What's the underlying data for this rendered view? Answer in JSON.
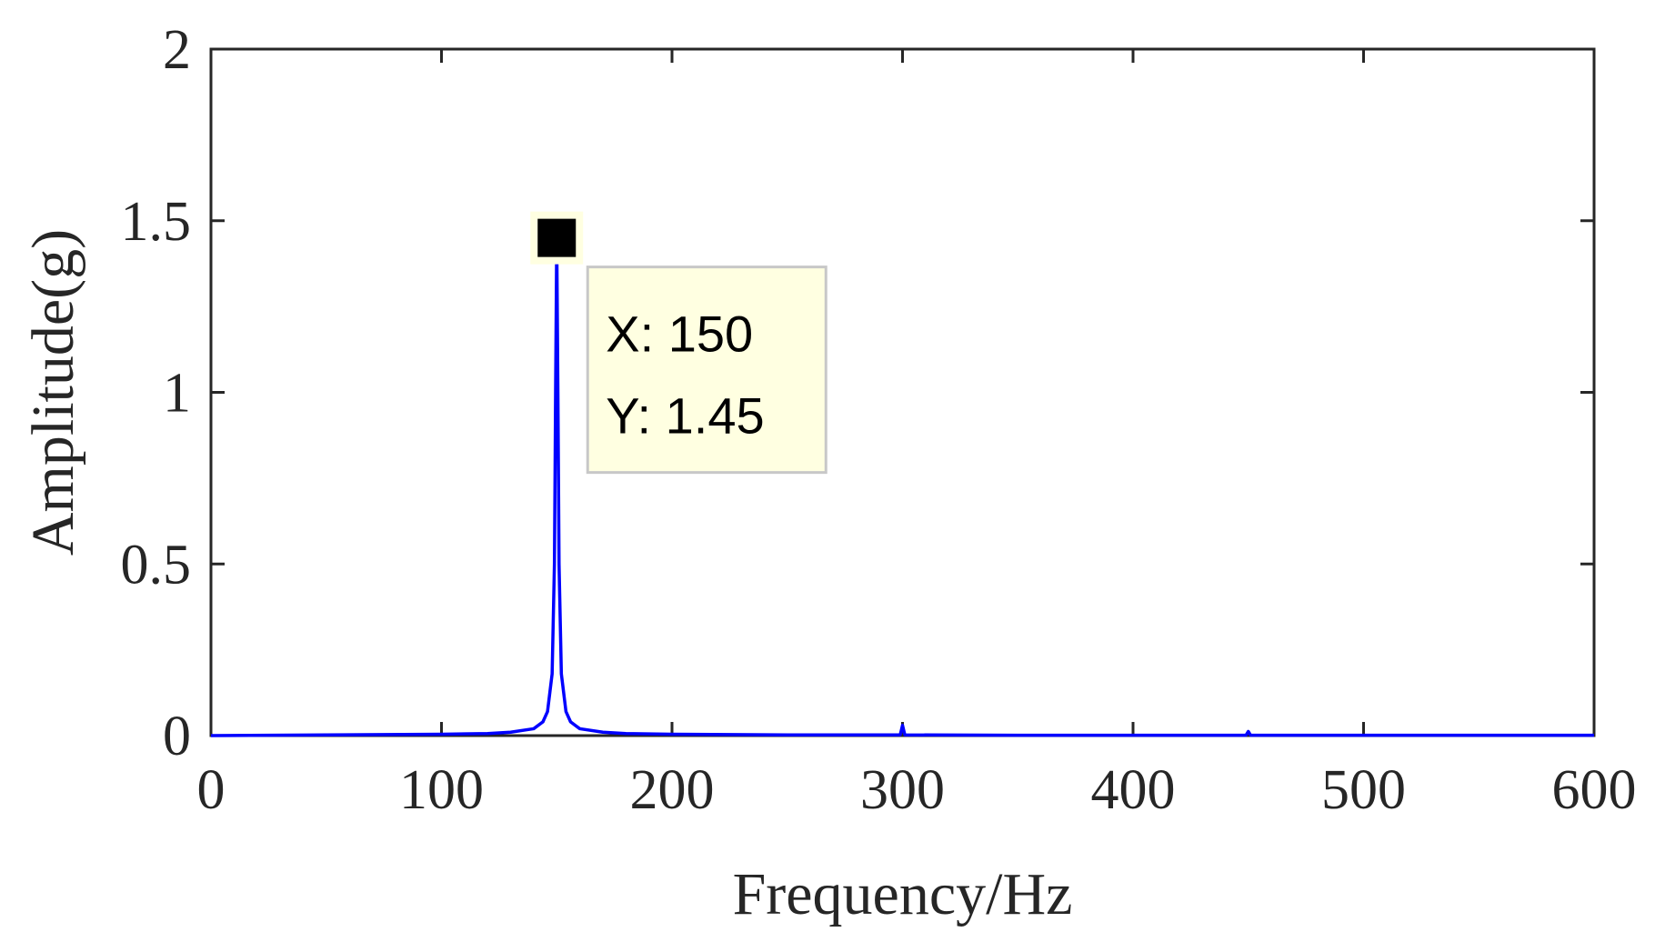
{
  "chart_data": {
    "type": "line",
    "title": "",
    "xlabel": "Frequency/Hz",
    "ylabel": "Amplitude(g)",
    "xlim": [
      0,
      600
    ],
    "ylim": [
      0,
      2
    ],
    "xticks": [
      0,
      100,
      200,
      300,
      400,
      500,
      600
    ],
    "xtick_labels": [
      "0",
      "100",
      "200",
      "300",
      "400",
      "500",
      "600"
    ],
    "yticks": [
      0,
      0.5,
      1,
      1.5,
      2
    ],
    "ytick_labels": [
      "0",
      "0.5",
      "1",
      "1.5",
      "2"
    ],
    "grid": false,
    "series": [
      {
        "color": "#0000ff",
        "x": [
          0,
          50,
          100,
          120,
          130,
          140,
          144,
          146,
          148,
          149,
          149.5,
          150,
          150.5,
          151,
          152,
          154,
          156,
          160,
          170,
          180,
          200,
          250,
          299,
          300,
          301,
          350,
          400,
          449,
          450,
          451,
          500,
          550,
          600
        ],
        "y": [
          0.0,
          0.002,
          0.004,
          0.006,
          0.01,
          0.02,
          0.04,
          0.07,
          0.18,
          0.5,
          1.0,
          1.45,
          1.0,
          0.5,
          0.18,
          0.07,
          0.04,
          0.02,
          0.01,
          0.006,
          0.004,
          0.002,
          0.002,
          0.03,
          0.002,
          0.001,
          0.001,
          0.001,
          0.012,
          0.001,
          0.001,
          0.001,
          0.001
        ]
      }
    ],
    "datatip": {
      "x": 150,
      "y": 1.45,
      "x_text": "X: 150",
      "y_text": "Y: 1.45",
      "background": "#ffffe1"
    }
  }
}
